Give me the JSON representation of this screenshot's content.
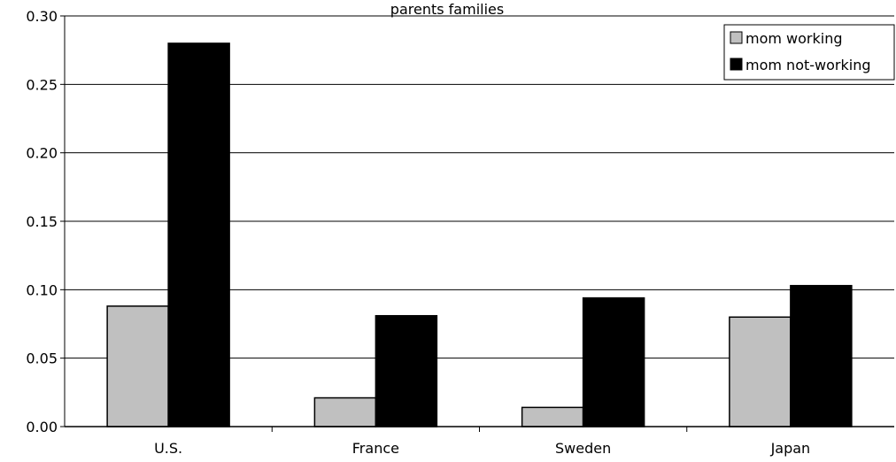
{
  "chart_data": {
    "type": "bar",
    "title": "parents families",
    "xlabel": "",
    "ylabel": "",
    "ylim": [
      0,
      0.3
    ],
    "yticks": [
      "0.00",
      "0.05",
      "0.10",
      "0.15",
      "0.20",
      "0.25",
      "0.30"
    ],
    "grid": true,
    "legend_position": "top-right",
    "categories": [
      "U.S.",
      "France",
      "Sweden",
      "Japan"
    ],
    "series": [
      {
        "name": "mom working",
        "color": "#c0c0c0",
        "values": [
          0.088,
          0.021,
          0.014,
          0.08
        ]
      },
      {
        "name": "mom not-working",
        "color": "#000000",
        "values": [
          0.28,
          0.081,
          0.094,
          0.103
        ]
      }
    ]
  }
}
